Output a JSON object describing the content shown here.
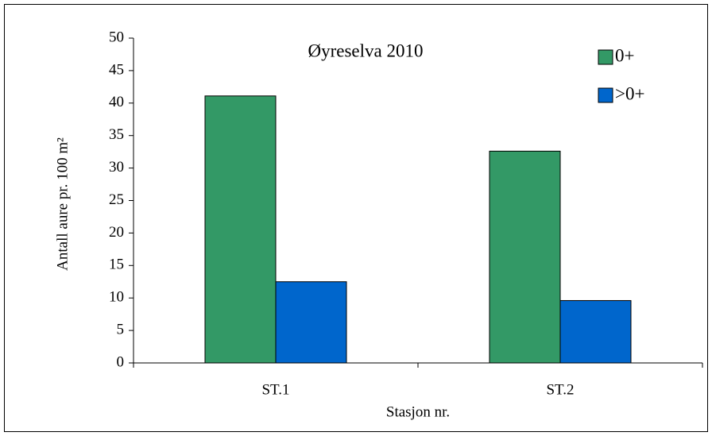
{
  "chart_data": {
    "type": "bar",
    "title": "Øyreselva 2010",
    "x_label": "Stasjon nr.",
    "y_label": "Antall aure pr. 100 m²",
    "categories": [
      "ST.1",
      "ST.2"
    ],
    "series": [
      {
        "name": "0+",
        "color": "#339966",
        "values": [
          41.1,
          32.6
        ]
      },
      {
        "name": ">0+",
        "color": "#0066cc",
        "values": [
          12.5,
          9.6
        ]
      }
    ],
    "ylim": [
      0,
      50
    ],
    "yticks": [
      0,
      5,
      10,
      15,
      20,
      25,
      30,
      35,
      40,
      45,
      50
    ],
    "legend": "upper right"
  }
}
